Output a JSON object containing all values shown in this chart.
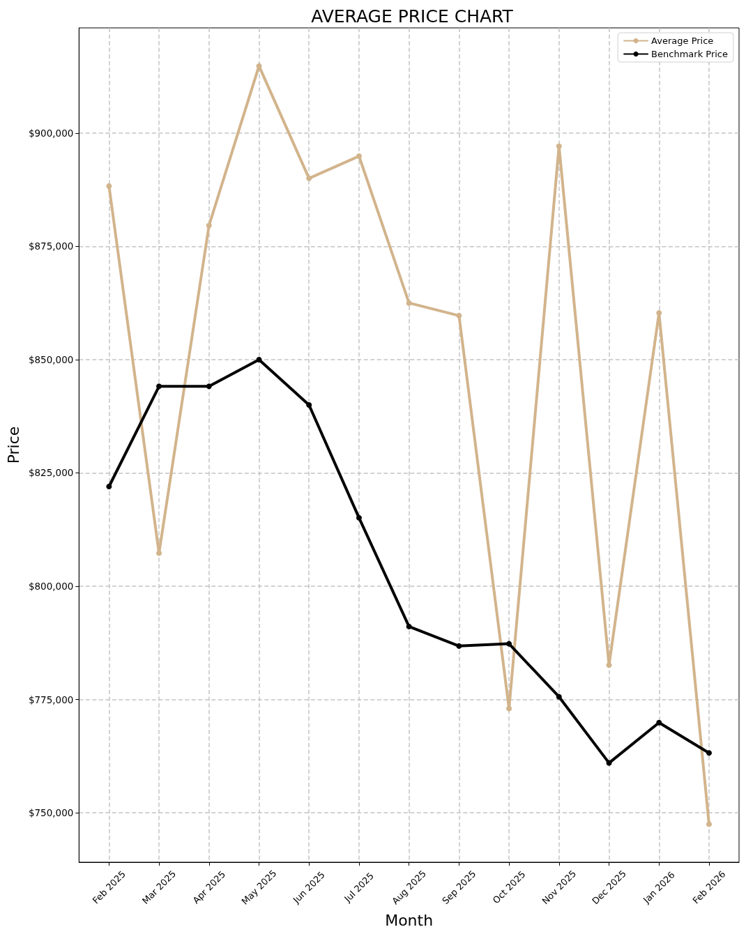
{
  "chart_data": {
    "type": "line",
    "title": "AVERAGE PRICE CHART",
    "xlabel": "Month",
    "ylabel": "Price",
    "categories": [
      "Feb 2025",
      "Mar 2025",
      "Apr 2025",
      "May 2025",
      "Jun 2025",
      "Jul 2025",
      "Aug 2025",
      "Sep 2025",
      "Oct 2025",
      "Nov 2025",
      "Dec 2025",
      "Jan 2026",
      "Feb 2026"
    ],
    "series": [
      {
        "name": "Average Price",
        "color": "#d2b48c",
        "values": [
          888300,
          807300,
          879600,
          914800,
          890000,
          894900,
          862500,
          859700,
          773000,
          897100,
          782600,
          860300,
          747500
        ]
      },
      {
        "name": "Benchmark Price",
        "color": "#000000",
        "values": [
          822000,
          844100,
          844100,
          850000,
          840000,
          815100,
          791100,
          786800,
          787300,
          775600,
          761000,
          769900,
          763200
        ]
      }
    ],
    "ylim": [
      739100,
      923200
    ],
    "yticks": [
      {
        "value": 750000,
        "label": "$750,000"
      },
      {
        "value": 775000,
        "label": "$775,000"
      },
      {
        "value": 800000,
        "label": "$800,000"
      },
      {
        "value": 825000,
        "label": "$825,000"
      },
      {
        "value": 850000,
        "label": "$850,000"
      },
      {
        "value": 875000,
        "label": "$875,000"
      },
      {
        "value": 900000,
        "label": "$900,000"
      }
    ],
    "grid": true,
    "legend": "top right",
    "marker": "circle",
    "line_style": "solid"
  }
}
